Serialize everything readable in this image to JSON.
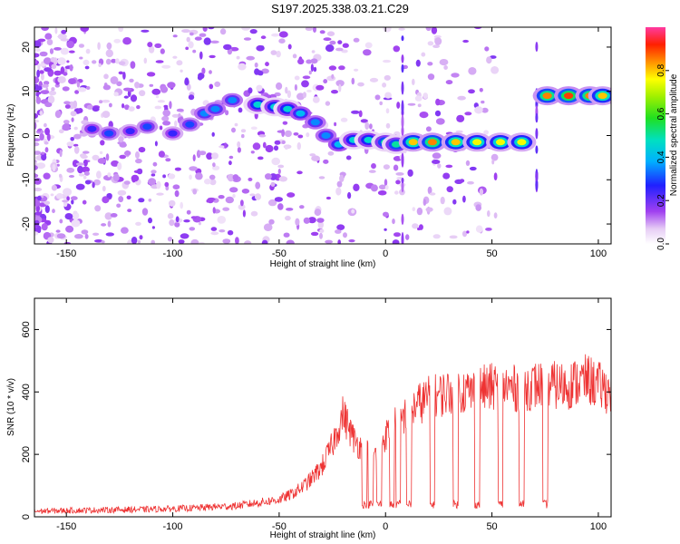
{
  "title": "S197.2025.338.03.21.C29",
  "chart_data": [
    {
      "type": "heatmap",
      "title": "S197.2025.338.03.21.C29",
      "xlabel": "Height of straight line (km)",
      "ylabel": "Frequency (Hz)",
      "xlim": [
        -165,
        106
      ],
      "ylim": [
        -24.5,
        24.5
      ],
      "xticks": [
        -150,
        -100,
        -50,
        0,
        50,
        100
      ],
      "yticks": [
        -20,
        -10,
        0,
        10,
        20
      ],
      "xtick_labels": [
        "-150",
        "-100",
        "-50",
        "0",
        "50",
        "100"
      ],
      "ytick_labels": [
        "-20",
        "-10",
        "0",
        "10",
        "20"
      ],
      "colorbar": {
        "label": "Normalized spectral amplitude",
        "range": [
          0,
          1
        ],
        "ticks": [
          0.0,
          0.2,
          0.4,
          0.6,
          0.8
        ],
        "tick_labels": [
          "0.0",
          "0.2",
          "0.4",
          "0.6",
          "0.8"
        ]
      },
      "ridge": [
        {
          "x": -138,
          "f": 1.5,
          "amp": 0.25
        },
        {
          "x": -130,
          "f": 0.5,
          "amp": 0.3
        },
        {
          "x": -120,
          "f": 1.0,
          "amp": 0.25
        },
        {
          "x": -112,
          "f": 2.0,
          "amp": 0.3
        },
        {
          "x": -100,
          "f": 0.5,
          "amp": 0.25
        },
        {
          "x": -92,
          "f": 2.5,
          "amp": 0.3
        },
        {
          "x": -85,
          "f": 5.0,
          "amp": 0.35
        },
        {
          "x": -80,
          "f": 6.0,
          "amp": 0.35
        },
        {
          "x": -72,
          "f": 8.0,
          "amp": 0.35
        },
        {
          "x": -60,
          "f": 7.0,
          "amp": 0.45
        },
        {
          "x": -52,
          "f": 6.5,
          "amp": 0.45
        },
        {
          "x": -46,
          "f": 6.0,
          "amp": 0.45
        },
        {
          "x": -40,
          "f": 5.0,
          "amp": 0.4
        },
        {
          "x": -33,
          "f": 3.0,
          "amp": 0.35
        },
        {
          "x": -28,
          "f": 0.0,
          "amp": 0.35
        },
        {
          "x": -22,
          "f": -2.0,
          "amp": 0.4
        },
        {
          "x": -15,
          "f": -1.0,
          "amp": 0.45
        },
        {
          "x": -8,
          "f": -1.0,
          "amp": 0.45
        },
        {
          "x": 0,
          "f": -1.5,
          "amp": 0.5
        },
        {
          "x": 5,
          "f": -2.0,
          "amp": 0.5
        },
        {
          "x": 13,
          "f": -1.5,
          "amp": 0.8
        },
        {
          "x": 22,
          "f": -1.5,
          "amp": 0.85
        },
        {
          "x": 33,
          "f": -1.5,
          "amp": 0.8
        },
        {
          "x": 43,
          "f": -1.5,
          "amp": 0.75
        },
        {
          "x": 54,
          "f": -1.5,
          "amp": 0.75
        },
        {
          "x": 64,
          "f": -1.5,
          "amp": 0.75
        },
        {
          "x": 76,
          "f": 9.0,
          "amp": 0.85
        },
        {
          "x": 86,
          "f": 9.0,
          "amp": 0.9
        },
        {
          "x": 96,
          "f": 9.0,
          "amp": 0.85
        },
        {
          "x": 102,
          "f": 9.0,
          "amp": 0.8
        }
      ]
    },
    {
      "type": "line",
      "xlabel": "Height of straight line (km)",
      "ylabel": "SNR (10 * v/v)",
      "xlim": [
        -165,
        106
      ],
      "ylim": [
        0,
        700
      ],
      "xticks": [
        -150,
        -100,
        -50,
        0,
        50,
        100
      ],
      "yticks": [
        0,
        200,
        400,
        600
      ],
      "xtick_labels": [
        "-150",
        "-100",
        "-50",
        "0",
        "50",
        "100"
      ],
      "ytick_labels": [
        "0",
        "200",
        "400",
        "600"
      ],
      "series": [
        {
          "name": "SNR",
          "color": "#ee3333",
          "x": [
            -165,
            -150,
            -130,
            -110,
            -90,
            -80,
            -70,
            -60,
            -50,
            -45,
            -40,
            -35,
            -30,
            -25,
            -20,
            -15,
            -10,
            -5,
            0,
            5,
            10,
            15,
            20,
            25,
            30,
            35,
            40,
            45,
            50,
            55,
            60,
            65,
            70,
            75,
            80,
            85,
            90,
            95,
            100,
            106
          ],
          "y": [
            18,
            20,
            22,
            24,
            28,
            32,
            35,
            45,
            55,
            70,
            90,
            120,
            160,
            230,
            330,
            250,
            210,
            200,
            260,
            300,
            330,
            360,
            380,
            390,
            400,
            405,
            400,
            410,
            415,
            420,
            410,
            415,
            420,
            425,
            420,
            420,
            430,
            440,
            420,
            400
          ]
        }
      ],
      "dips": [
        -10,
        -7,
        -3,
        3,
        6,
        11,
        22,
        33,
        43,
        54,
        64,
        75
      ],
      "dip_level": 40
    }
  ]
}
